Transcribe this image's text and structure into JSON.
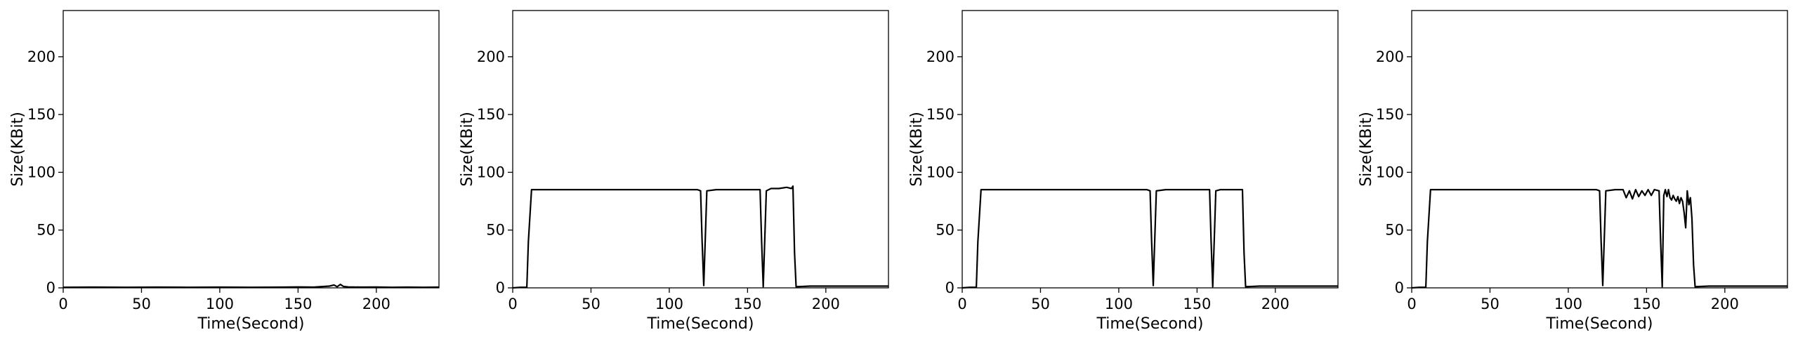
{
  "chart_data": [
    {
      "type": "line",
      "xlabel": "Time(Second)",
      "ylabel": "Size(KBit)",
      "xlim": [
        0,
        240
      ],
      "ylim": [
        0,
        240
      ],
      "xticks": [
        0,
        50,
        100,
        150,
        200
      ],
      "yticks": [
        0,
        50,
        100,
        150,
        200
      ],
      "grid": false,
      "series": [
        {
          "x": [
            0,
            20,
            40,
            60,
            80,
            100,
            120,
            140,
            150,
            160,
            170,
            173,
            175,
            177,
            179,
            182,
            190,
            200,
            210,
            220,
            230,
            240
          ],
          "y": [
            0.5,
            0.6,
            0.5,
            0.6,
            0.5,
            0.6,
            0.5,
            0.6,
            0.8,
            0.6,
            1.5,
            2.5,
            1.0,
            3.0,
            1.2,
            0.8,
            0.6,
            0.7,
            0.5,
            0.6,
            0.5,
            0.6
          ]
        }
      ]
    },
    {
      "type": "line",
      "xlabel": "Time(Second)",
      "ylabel": "Size(KBit)",
      "xlim": [
        0,
        240
      ],
      "ylim": [
        0,
        240
      ],
      "xticks": [
        0,
        50,
        100,
        150,
        200
      ],
      "yticks": [
        0,
        50,
        100,
        150,
        200
      ],
      "grid": false,
      "series": [
        {
          "x": [
            0,
            5,
            9,
            10,
            12,
            20,
            40,
            60,
            80,
            100,
            118,
            120,
            121,
            122,
            124,
            130,
            140,
            150,
            158,
            159,
            160,
            162,
            165,
            170,
            175,
            178,
            179,
            180,
            181,
            190,
            200,
            220,
            240
          ],
          "y": [
            0,
            0.5,
            0.5,
            40,
            85,
            85,
            85,
            85,
            85,
            85,
            85,
            84,
            40,
            2,
            84,
            85,
            85,
            85,
            85,
            40,
            1,
            84,
            86,
            86,
            87,
            86,
            88,
            30,
            1,
            1.5,
            1.5,
            1.5,
            1.5
          ]
        }
      ]
    },
    {
      "type": "line",
      "xlabel": "Time(Second)",
      "ylabel": "Size(KBit)",
      "xlim": [
        0,
        240
      ],
      "ylim": [
        0,
        240
      ],
      "xticks": [
        0,
        50,
        100,
        150,
        200
      ],
      "yticks": [
        0,
        50,
        100,
        150,
        200
      ],
      "grid": false,
      "series": [
        {
          "x": [
            0,
            5,
            9,
            10,
            12,
            20,
            40,
            60,
            80,
            100,
            118,
            120,
            121,
            122,
            124,
            130,
            140,
            150,
            158,
            159,
            160,
            162,
            165,
            170,
            175,
            179,
            180,
            181,
            190,
            200,
            220,
            240
          ],
          "y": [
            0,
            0.5,
            0.5,
            40,
            85,
            85,
            85,
            85,
            85,
            85,
            85,
            84,
            40,
            2,
            84,
            85,
            85,
            85,
            85,
            40,
            1,
            84,
            85,
            85,
            85,
            85,
            30,
            1,
            1.5,
            1.5,
            1.5,
            1.5
          ]
        }
      ]
    },
    {
      "type": "line",
      "xlabel": "Time(Second)",
      "ylabel": "Size(KBit)",
      "xlim": [
        0,
        240
      ],
      "ylim": [
        0,
        240
      ],
      "xticks": [
        0,
        50,
        100,
        150,
        200
      ],
      "yticks": [
        0,
        50,
        100,
        150,
        200
      ],
      "grid": false,
      "series": [
        {
          "x": [
            0,
            5,
            9,
            10,
            12,
            20,
            40,
            60,
            80,
            100,
            118,
            120,
            121,
            122,
            124,
            130,
            135,
            137,
            139,
            141,
            143,
            145,
            147,
            149,
            151,
            153,
            155,
            158,
            159,
            160,
            161,
            162,
            163,
            164,
            165,
            166,
            167,
            168,
            169,
            170,
            171,
            172,
            173,
            174,
            175,
            176,
            177,
            178,
            179,
            180,
            181,
            190,
            200,
            220,
            240
          ],
          "y": [
            0,
            0.5,
            0.5,
            40,
            85,
            85,
            85,
            85,
            85,
            85,
            85,
            84,
            40,
            2,
            84,
            85,
            85,
            78,
            84,
            77,
            85,
            79,
            84,
            80,
            85,
            80,
            85,
            84,
            40,
            1,
            80,
            85,
            79,
            85,
            78,
            76,
            80,
            77,
            75,
            79,
            73,
            78,
            75,
            65,
            52,
            84,
            72,
            78,
            60,
            20,
            1,
            1.5,
            1.5,
            1.5,
            1.5
          ]
        }
      ]
    }
  ]
}
